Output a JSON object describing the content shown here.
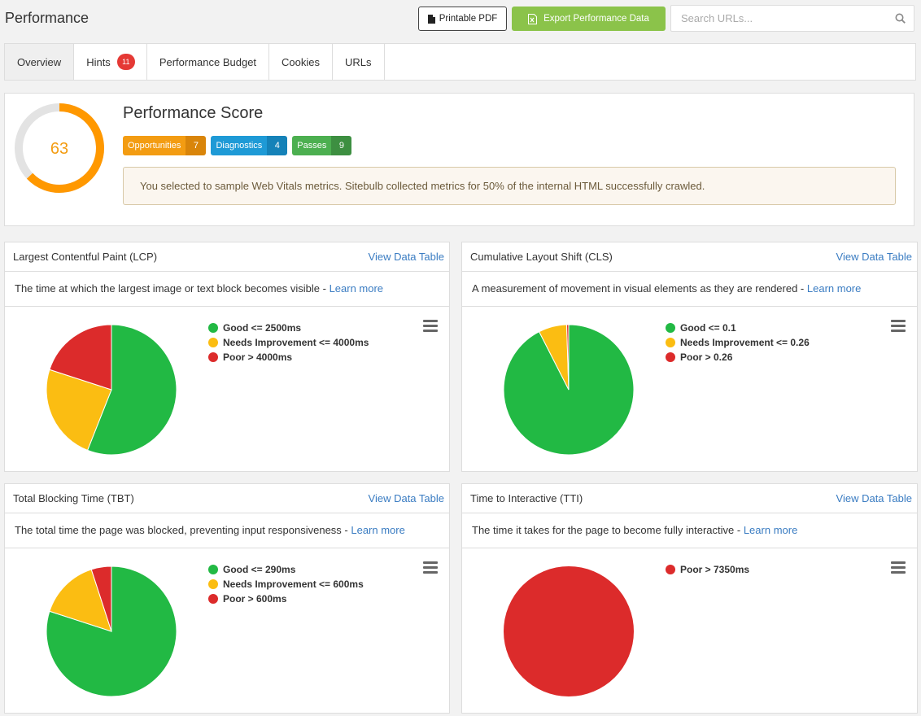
{
  "header": {
    "title": "Performance",
    "pdf_label": "Printable PDF",
    "export_label": "Export Performance Data",
    "search_placeholder": "Search URLs..."
  },
  "tabs": [
    {
      "label": "Overview",
      "active": true
    },
    {
      "label": "Hints",
      "badge": "11"
    },
    {
      "label": "Performance Budget"
    },
    {
      "label": "Cookies"
    },
    {
      "label": "URLs"
    }
  ],
  "score": {
    "value": "63",
    "fraction": 0.63,
    "title": "Performance Score",
    "ring_color": "#ff9800",
    "track_color": "#e3e3e3",
    "pills": [
      {
        "label": "Opportunities",
        "count": "7",
        "color": "#f39c12"
      },
      {
        "label": "Diagnostics",
        "count": "4",
        "color": "#1e9ad6"
      },
      {
        "label": "Passes",
        "count": "9",
        "color": "#4caf50"
      }
    ],
    "notice": "You selected to sample Web Vitals metrics. Sitebulb collected metrics for 50% of the internal HTML successfully crawled."
  },
  "colors": {
    "good": "#22b944",
    "needs": "#fbbd12",
    "poor": "#dc2b2b",
    "link": "#3a7cc2"
  },
  "cards": [
    {
      "title": "Largest Contentful Paint (LCP)",
      "link": "View Data Table",
      "desc": "The time at which the largest image or text block becomes visible - ",
      "learn": "Learn more",
      "legend": [
        "Good <= 2500ms",
        "Needs Improvement <= 4000ms",
        "Poor > 4000ms"
      ]
    },
    {
      "title": "Cumulative Layout Shift (CLS)",
      "link": "View Data Table",
      "desc": "A measurement of movement in visual elements as they are rendered - ",
      "learn": "Learn more",
      "legend": [
        "Good <= 0.1",
        "Needs Improvement <= 0.26",
        "Poor > 0.26"
      ]
    },
    {
      "title": "Total Blocking Time (TBT)",
      "link": "View Data Table",
      "desc": "The total time the page was blocked, preventing input responsiveness - ",
      "learn": "Learn more",
      "legend": [
        "Good <= 290ms",
        "Needs Improvement <= 600ms",
        "Poor > 600ms"
      ]
    },
    {
      "title": "Time to Interactive (TTI)",
      "link": "View Data Table",
      "desc": "The time it takes for the page to become fully interactive - ",
      "learn": "Learn more",
      "legend": [
        "Poor > 7350ms"
      ]
    }
  ],
  "chart_data": [
    {
      "type": "pie",
      "categories": [
        "Good <= 2500ms",
        "Needs Improvement <= 4000ms",
        "Poor > 4000ms"
      ],
      "values": [
        56,
        24,
        20
      ]
    },
    {
      "type": "pie",
      "categories": [
        "Good <= 0.1",
        "Needs Improvement <= 0.26",
        "Poor > 0.26"
      ],
      "values": [
        92.5,
        7,
        0.5
      ]
    },
    {
      "type": "pie",
      "categories": [
        "Good <= 290ms",
        "Needs Improvement <= 600ms",
        "Poor > 600ms"
      ],
      "values": [
        80,
        15,
        5
      ]
    },
    {
      "type": "pie",
      "categories": [
        "Poor > 7350ms"
      ],
      "values": [
        100
      ]
    }
  ]
}
